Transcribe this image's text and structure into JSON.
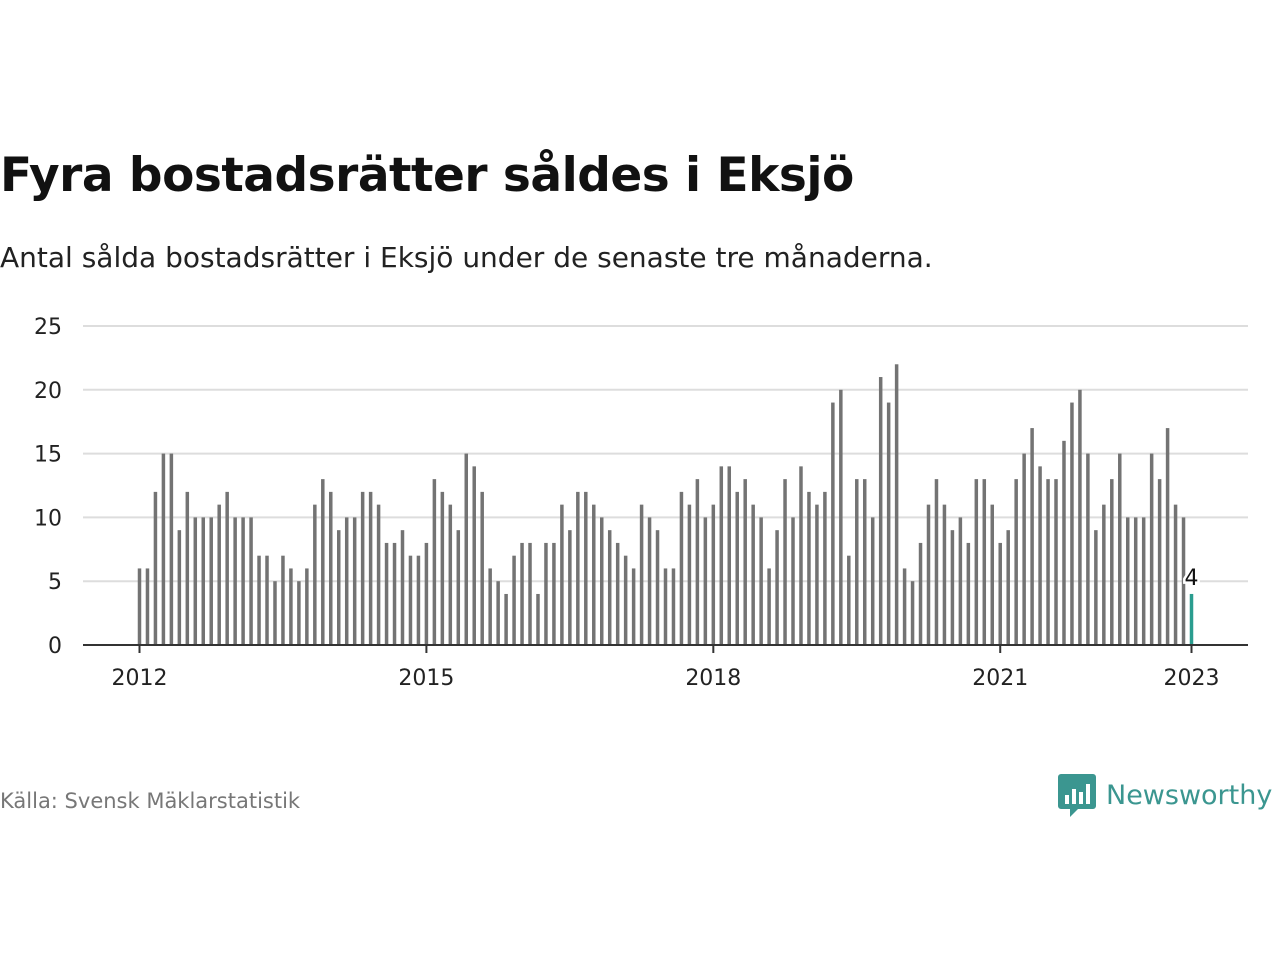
{
  "chart_data": {
    "type": "bar",
    "title": "Fyra bostadsrätter såldes i Eksjö",
    "subtitle": "Antal sålda bostadsrätter i Eksjö under de senaste tre månaderna.",
    "xlabel": "",
    "ylabel": "",
    "x_tick_labels": [
      "2012",
      "2015",
      "2018",
      "2021",
      "2023"
    ],
    "y_ticks": [
      0,
      5,
      10,
      15,
      20,
      25
    ],
    "ylim": [
      0,
      25
    ],
    "grid": true,
    "legend": "none",
    "start": "2012-01",
    "end": "2023-01",
    "values": [
      6,
      6,
      12,
      15,
      15,
      9,
      12,
      10,
      10,
      10,
      11,
      12,
      10,
      10,
      10,
      7,
      7,
      5,
      7,
      6,
      5,
      6,
      11,
      13,
      12,
      9,
      10,
      10,
      12,
      12,
      11,
      8,
      8,
      9,
      7,
      7,
      8,
      13,
      12,
      11,
      9,
      15,
      14,
      12,
      6,
      5,
      4,
      7,
      8,
      8,
      4,
      8,
      8,
      11,
      9,
      12,
      12,
      11,
      10,
      9,
      8,
      7,
      6,
      11,
      10,
      9,
      6,
      6,
      12,
      11,
      13,
      10,
      11,
      14,
      14,
      12,
      13,
      11,
      10,
      6,
      9,
      13,
      10,
      14,
      12,
      11,
      12,
      19,
      20,
      7,
      13,
      13,
      10,
      21,
      19,
      22,
      6,
      5,
      8,
      11,
      13,
      11,
      9,
      10,
      8,
      13,
      13,
      11,
      8,
      9,
      13,
      15,
      17,
      14,
      13,
      13,
      16,
      19,
      20,
      15,
      9,
      11,
      13,
      15,
      10,
      10,
      10,
      15,
      13,
      17,
      11,
      10,
      4
    ],
    "highlight": {
      "index": 132,
      "value": 4,
      "label": "4"
    },
    "colors": {
      "bar": "#737373",
      "highlight": "#2a9d8f",
      "grid": "#dddddd",
      "axis": "#333333"
    }
  },
  "footer": {
    "source": "Källa: Svensk Mäklarstatistik",
    "brand": "Newsworthy",
    "brand_icon": "newsworthy-logo-icon",
    "brand_color": "#3b9690"
  }
}
